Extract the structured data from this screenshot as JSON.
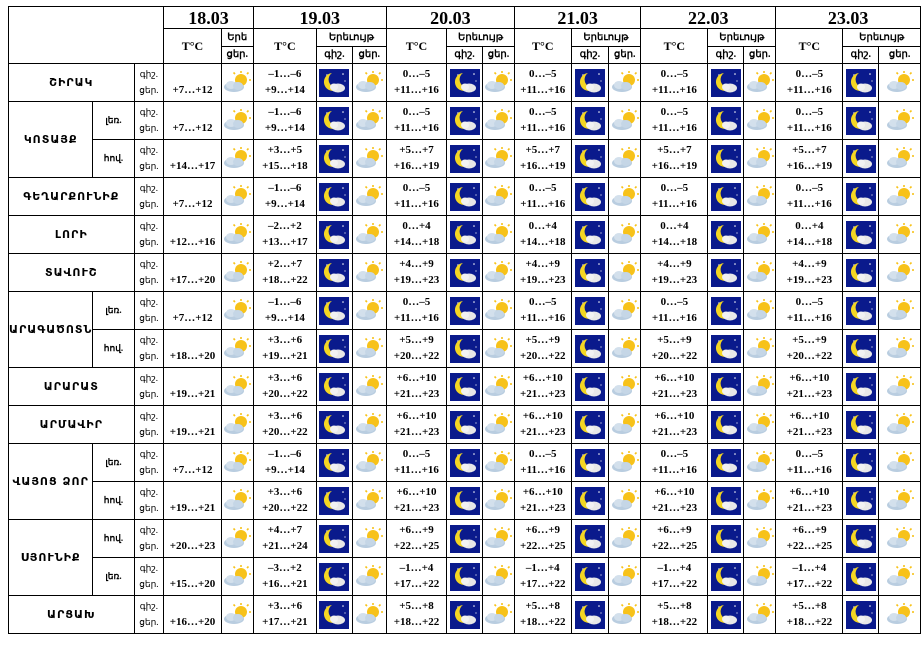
{
  "dates": [
    "18.03",
    "19.03",
    "20.03",
    "21.03",
    "22.03",
    "23.03"
  ],
  "header": {
    "temp_label": "T°C",
    "weather_label": "Երեւույթ",
    "weather_label_short": "Երե",
    "night_label": "գիշ.",
    "day_label": "ցեր."
  },
  "period_labels": {
    "night": "գիշ.",
    "day": "ցեր."
  },
  "rows": [
    {
      "region": "ՇԻՐԱԿ",
      "sub": "",
      "d1": {
        "night": "",
        "day": "+7…+12",
        "icon": "cloud-sun"
      },
      "days": [
        [
          "–1…–6",
          "+9…+14"
        ],
        [
          "0…–5",
          "+11…+16"
        ],
        [
          "0…–5",
          "+11…+16"
        ],
        [
          "0…–5",
          "+11…+16"
        ],
        [
          "0…–5",
          "+11…+16"
        ]
      ]
    },
    {
      "region": "ԿՈՏԱՅՔ",
      "sub": "լեռ.",
      "d1": {
        "night": "",
        "day": "+7…+12",
        "icon": "cloud-sun"
      },
      "days": [
        [
          "–1…–6",
          "+9…+14"
        ],
        [
          "0…–5",
          "+11…+16"
        ],
        [
          "0…–5",
          "+11…+16"
        ],
        [
          "0…–5",
          "+11…+16"
        ],
        [
          "0…–5",
          "+11…+16"
        ]
      ]
    },
    {
      "region": "",
      "sub": "հով.",
      "d1": {
        "night": "",
        "day": "+14…+17",
        "icon": "cloud-sun"
      },
      "days": [
        [
          "+3…+5",
          "+15…+18"
        ],
        [
          "+5…+7",
          "+16…+19"
        ],
        [
          "+5…+7",
          "+16…+19"
        ],
        [
          "+5…+7",
          "+16…+19"
        ],
        [
          "+5…+7",
          "+16…+19"
        ]
      ]
    },
    {
      "region": "ԳԵՂԱՐՔՈՒՆԻՔ",
      "sub": "",
      "d1": {
        "night": "",
        "day": "+7…+12",
        "icon": "cloud-sun"
      },
      "days": [
        [
          "–1…–6",
          "+9…+14"
        ],
        [
          "0…–5",
          "+11…+16"
        ],
        [
          "0…–5",
          "+11…+16"
        ],
        [
          "0…–5",
          "+11…+16"
        ],
        [
          "0…–5",
          "+11…+16"
        ]
      ]
    },
    {
      "region": "ԼՈՐԻ",
      "sub": "",
      "d1": {
        "night": "",
        "day": "+12…+16",
        "icon": "cloud-sun"
      },
      "days": [
        [
          "–2…+2",
          "+13…+17"
        ],
        [
          "0…+4",
          "+14…+18"
        ],
        [
          "0…+4",
          "+14…+18"
        ],
        [
          "0…+4",
          "+14…+18"
        ],
        [
          "0…+4",
          "+14…+18"
        ]
      ]
    },
    {
      "region": "ՏԱՎՈՒՇ",
      "sub": "",
      "d1": {
        "night": "",
        "day": "+17…+20",
        "icon": "cloud-sun"
      },
      "days": [
        [
          "+2…+7",
          "+18…+22"
        ],
        [
          "+4…+9",
          "+19…+23"
        ],
        [
          "+4…+9",
          "+19…+23"
        ],
        [
          "+4…+9",
          "+19…+23"
        ],
        [
          "+4…+9",
          "+19…+23"
        ]
      ]
    },
    {
      "region": "ԱՐԱԳԱԾՈՏՆ",
      "sub": "լեռ.",
      "d1": {
        "night": "",
        "day": "+7…+12",
        "icon": "cloud-sun"
      },
      "days": [
        [
          "–1…–6",
          "+9…+14"
        ],
        [
          "0…–5",
          "+11…+16"
        ],
        [
          "0…–5",
          "+11…+16"
        ],
        [
          "0…–5",
          "+11…+16"
        ],
        [
          "0…–5",
          "+11…+16"
        ]
      ]
    },
    {
      "region": "",
      "sub": "հով.",
      "d1": {
        "night": "",
        "day": "+18…+20",
        "icon": "cloud-sun"
      },
      "days": [
        [
          "+3…+6",
          "+19…+21"
        ],
        [
          "+5…+9",
          "+20…+22"
        ],
        [
          "+5…+9",
          "+20…+22"
        ],
        [
          "+5…+9",
          "+20…+22"
        ],
        [
          "+5…+9",
          "+20…+22"
        ]
      ]
    },
    {
      "region": "ԱՐԱՐԱՏ",
      "sub": "",
      "d1": {
        "night": "",
        "day": "+19…+21",
        "icon": "cloud-sun"
      },
      "days": [
        [
          "+3…+6",
          "+20…+22"
        ],
        [
          "+6…+10",
          "+21…+23"
        ],
        [
          "+6…+10",
          "+21…+23"
        ],
        [
          "+6…+10",
          "+21…+23"
        ],
        [
          "+6…+10",
          "+21…+23"
        ]
      ]
    },
    {
      "region": "ԱՐՄԱՎԻՐ",
      "sub": "",
      "d1": {
        "night": "",
        "day": "+19…+21",
        "icon": "cloud-sun"
      },
      "days": [
        [
          "+3…+6",
          "+20…+22"
        ],
        [
          "+6…+10",
          "+21…+23"
        ],
        [
          "+6…+10",
          "+21…+23"
        ],
        [
          "+6…+10",
          "+21…+23"
        ],
        [
          "+6…+10",
          "+21…+23"
        ]
      ]
    },
    {
      "region": "ՎԱՅՈՑ ՁՈՐ",
      "sub": "լեռ.",
      "d1": {
        "night": "",
        "day": "+7…+12",
        "icon": "cloud-sun"
      },
      "days": [
        [
          "–1…–6",
          "+9…+14"
        ],
        [
          "0…–5",
          "+11…+16"
        ],
        [
          "0…–5",
          "+11…+16"
        ],
        [
          "0…–5",
          "+11…+16"
        ],
        [
          "0…–5",
          "+11…+16"
        ]
      ]
    },
    {
      "region": "",
      "sub": "հով.",
      "d1": {
        "night": "",
        "day": "+19…+21",
        "icon": "cloud-sun"
      },
      "days": [
        [
          "+3…+6",
          "+20…+22"
        ],
        [
          "+6…+10",
          "+21…+23"
        ],
        [
          "+6…+10",
          "+21…+23"
        ],
        [
          "+6…+10",
          "+21…+23"
        ],
        [
          "+6…+10",
          "+21…+23"
        ]
      ]
    },
    {
      "region": "ՍՅՈՒՆԻՔ",
      "sub": "հով.",
      "d1": {
        "night": "",
        "day": "+20…+23",
        "icon": "cloud-sun"
      },
      "days": [
        [
          "+4…+7",
          "+21…+24"
        ],
        [
          "+6…+9",
          "+22…+25"
        ],
        [
          "+6…+9",
          "+22…+25"
        ],
        [
          "+6…+9",
          "+22…+25"
        ],
        [
          "+6…+9",
          "+22…+25"
        ]
      ]
    },
    {
      "region": "",
      "sub": "լեռ.",
      "d1": {
        "night": "",
        "day": "+15…+20",
        "icon": "cloud-sun"
      },
      "days": [
        [
          "–3…+2",
          "+16…+21"
        ],
        [
          "–1…+4",
          "+17…+22"
        ],
        [
          "–1…+4",
          "+17…+22"
        ],
        [
          "–1…+4",
          "+17…+22"
        ],
        [
          "–1…+4",
          "+17…+22"
        ]
      ]
    },
    {
      "region": "ԱՐՑԱԽ",
      "sub": "",
      "d1": {
        "night": "",
        "day": "+16…+20",
        "icon": "cloud-sun"
      },
      "days": [
        [
          "+3…+6",
          "+17…+21"
        ],
        [
          "+5…+8",
          "+18…+22"
        ],
        [
          "+5…+8",
          "+18…+22"
        ],
        [
          "+5…+8",
          "+18…+22"
        ],
        [
          "+5…+8",
          "+18…+22"
        ]
      ]
    }
  ],
  "icons": {
    "night": "moon-cloud-icon",
    "day": "cloud-sun-icon"
  }
}
